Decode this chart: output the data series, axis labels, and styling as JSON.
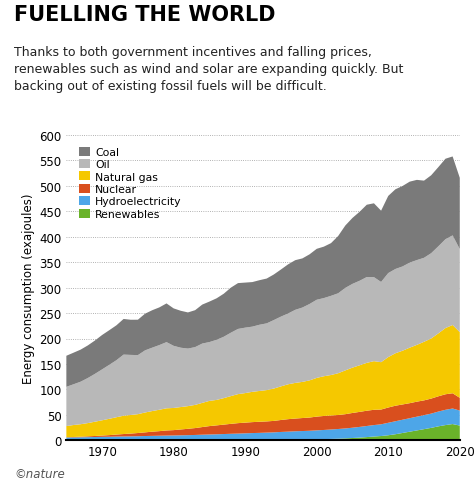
{
  "title": "FUELLING THE WORLD",
  "subtitle": "Thanks to both government incentives and falling prices,\nrenewables such as wind and solar are expanding quickly. But\nbacking out of existing fossil fuels will be difficult.",
  "ylabel": "Energy consumption (exajoules)",
  "years": [
    1965,
    1966,
    1967,
    1968,
    1969,
    1970,
    1971,
    1972,
    1973,
    1974,
    1975,
    1976,
    1977,
    1978,
    1979,
    1980,
    1981,
    1982,
    1983,
    1984,
    1985,
    1986,
    1987,
    1988,
    1989,
    1990,
    1991,
    1992,
    1993,
    1994,
    1995,
    1996,
    1997,
    1998,
    1999,
    2000,
    2001,
    2002,
    2003,
    2004,
    2005,
    2006,
    2007,
    2008,
    2009,
    2010,
    2011,
    2012,
    2013,
    2014,
    2015,
    2016,
    2017,
    2018,
    2019,
    2020
  ],
  "renewables": [
    0.1,
    0.1,
    0.1,
    0.1,
    0.1,
    0.1,
    0.1,
    0.1,
    0.1,
    0.1,
    0.1,
    0.1,
    0.1,
    0.1,
    0.1,
    0.2,
    0.2,
    0.2,
    0.2,
    0.3,
    0.3,
    0.3,
    0.4,
    0.4,
    0.5,
    0.5,
    0.6,
    0.7,
    0.8,
    0.9,
    1.0,
    1.1,
    1.3,
    1.5,
    1.8,
    2.1,
    2.4,
    2.8,
    3.3,
    3.9,
    4.6,
    5.4,
    6.4,
    7.5,
    8.5,
    10.0,
    12.0,
    14.5,
    17.0,
    19.5,
    22.0,
    24.5,
    27.5,
    30.0,
    32.0,
    29.0
  ],
  "hydroelectricity": [
    5.5,
    5.7,
    5.9,
    6.2,
    6.5,
    6.8,
    7.0,
    7.3,
    7.5,
    7.7,
    8.0,
    8.4,
    8.7,
    9.0,
    9.3,
    9.4,
    9.7,
    10.0,
    10.4,
    10.8,
    11.2,
    11.6,
    12.0,
    12.5,
    12.8,
    13.3,
    13.7,
    14.0,
    14.4,
    14.8,
    15.5,
    16.0,
    16.5,
    16.8,
    17.0,
    17.5,
    18.0,
    18.5,
    19.0,
    19.5,
    20.2,
    21.0,
    21.8,
    22.5,
    23.0,
    24.5,
    25.5,
    26.0,
    26.5,
    27.0,
    27.5,
    28.0,
    29.0,
    30.0,
    30.5,
    29.5
  ],
  "nuclear": [
    0.5,
    0.8,
    1.2,
    1.6,
    2.0,
    2.5,
    3.2,
    4.0,
    4.8,
    5.5,
    6.3,
    7.2,
    8.2,
    9.0,
    10.0,
    10.5,
    11.5,
    12.5,
    13.5,
    15.0,
    16.5,
    17.5,
    18.5,
    19.5,
    20.5,
    21.0,
    21.5,
    21.8,
    22.0,
    22.5,
    23.5,
    24.5,
    25.0,
    25.5,
    26.0,
    27.0,
    27.5,
    27.5,
    27.5,
    28.0,
    29.0,
    29.5,
    30.0,
    30.0,
    29.0,
    30.0,
    30.5,
    30.0,
    29.5,
    29.5,
    29.0,
    29.5,
    30.0,
    30.5,
    30.0,
    25.0
  ],
  "natural_gas": [
    22.0,
    23.5,
    24.5,
    26.0,
    28.0,
    30.0,
    32.0,
    34.0,
    36.0,
    36.5,
    37.0,
    39.0,
    40.5,
    42.0,
    43.5,
    43.5,
    44.0,
    44.5,
    45.5,
    47.5,
    49.5,
    50.0,
    52.0,
    54.5,
    57.0,
    58.0,
    59.5,
    60.5,
    61.5,
    63.5,
    66.0,
    68.5,
    70.0,
    71.0,
    73.0,
    76.0,
    78.0,
    79.5,
    82.0,
    86.0,
    89.0,
    91.5,
    94.0,
    95.5,
    93.0,
    99.0,
    103.0,
    105.5,
    109.0,
    111.5,
    115.0,
    118.0,
    123.5,
    130.0,
    134.0,
    129.0
  ],
  "oil": [
    77.0,
    80.0,
    83.5,
    88.5,
    94.0,
    100.0,
    106.0,
    112.0,
    120.0,
    118.0,
    116.0,
    122.0,
    124.5,
    127.0,
    130.0,
    122.0,
    116.5,
    113.0,
    113.5,
    116.5,
    115.5,
    118.0,
    120.5,
    124.5,
    128.0,
    128.5,
    128.0,
    130.0,
    131.0,
    134.5,
    137.0,
    139.0,
    143.5,
    146.0,
    150.0,
    153.5,
    153.5,
    155.5,
    157.0,
    162.0,
    164.5,
    166.0,
    168.5,
    165.0,
    157.5,
    165.0,
    165.5,
    165.5,
    167.0,
    166.5,
    165.0,
    167.5,
    171.0,
    174.5,
    176.0,
    163.0
  ],
  "coal": [
    61.0,
    62.0,
    63.0,
    64.0,
    65.5,
    67.5,
    68.0,
    68.5,
    70.0,
    69.0,
    69.5,
    72.0,
    73.5,
    74.0,
    76.0,
    73.5,
    72.5,
    71.0,
    72.5,
    76.5,
    79.5,
    81.5,
    84.5,
    88.5,
    90.0,
    88.5,
    87.5,
    87.5,
    88.0,
    89.5,
    92.5,
    96.5,
    97.5,
    96.5,
    97.5,
    100.0,
    101.0,
    103.5,
    112.5,
    122.5,
    129.5,
    135.5,
    142.0,
    145.0,
    140.0,
    151.5,
    156.5,
    158.0,
    159.0,
    157.5,
    151.5,
    153.0,
    155.5,
    158.0,
    155.0,
    140.0
  ],
  "colors": {
    "coal": "#7a7a7a",
    "oil": "#b8b8b8",
    "natural_gas": "#f5c800",
    "nuclear": "#d94f1e",
    "hydroelectricity": "#4da6e8",
    "renewables": "#6ab32a"
  },
  "legend_labels": [
    "Coal",
    "Oil",
    "Natural gas",
    "Nuclear",
    "Hydroelectricity",
    "Renewables"
  ],
  "ylim": [
    0,
    600
  ],
  "yticks": [
    0,
    50,
    100,
    150,
    200,
    250,
    300,
    350,
    400,
    450,
    500,
    550,
    600
  ],
  "xticks": [
    1970,
    1980,
    1990,
    2000,
    2010,
    2020
  ],
  "background_color": "#ffffff",
  "footer": "©nature",
  "title_fontsize": 15,
  "subtitle_fontsize": 9.0,
  "ylabel_fontsize": 8.5
}
